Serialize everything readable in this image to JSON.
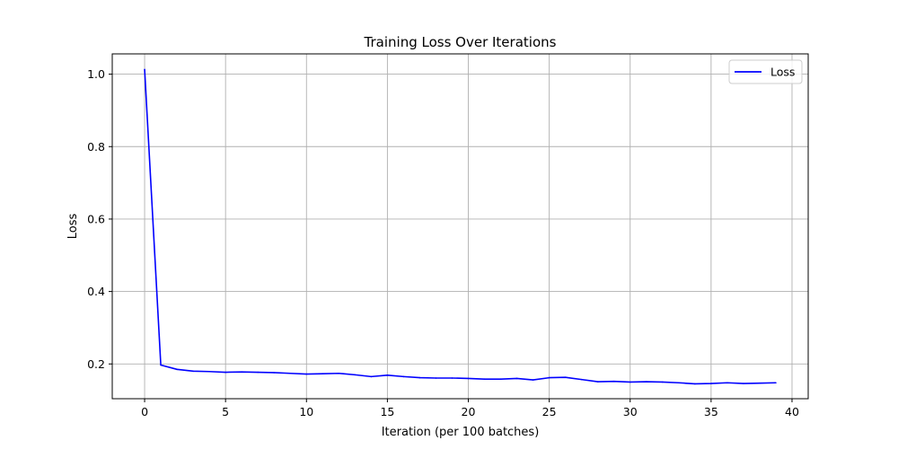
{
  "chart_data": {
    "type": "line",
    "title": "Training Loss Over Iterations",
    "xlabel": "Iteration (per 100 batches)",
    "ylabel": "Loss",
    "xlim": [
      -2,
      41
    ],
    "ylim": [
      0.104,
      1.056
    ],
    "xticks": [
      0,
      5,
      10,
      15,
      20,
      25,
      30,
      35,
      40
    ],
    "yticks": [
      0.2,
      0.4,
      0.6,
      0.8,
      1.0
    ],
    "xtick_labels": [
      "0",
      "5",
      "10",
      "15",
      "20",
      "25",
      "30",
      "35",
      "40"
    ],
    "ytick_labels": [
      "0.2",
      "0.4",
      "0.6",
      "0.8",
      "1.0"
    ],
    "grid": true,
    "legend_position": "top-right",
    "series": [
      {
        "name": "Loss",
        "color": "#0000ff",
        "x": [
          0,
          1,
          2,
          3,
          4,
          5,
          6,
          7,
          8,
          9,
          10,
          11,
          12,
          13,
          14,
          15,
          16,
          17,
          18,
          19,
          20,
          21,
          22,
          23,
          24,
          25,
          26,
          27,
          28,
          29,
          30,
          31,
          32,
          33,
          34,
          35,
          36,
          37,
          38,
          39
        ],
        "y": [
          1.013,
          0.197,
          0.185,
          0.18,
          0.179,
          0.177,
          0.178,
          0.177,
          0.176,
          0.174,
          0.172,
          0.173,
          0.174,
          0.17,
          0.165,
          0.169,
          0.165,
          0.162,
          0.161,
          0.161,
          0.16,
          0.158,
          0.158,
          0.16,
          0.156,
          0.162,
          0.163,
          0.157,
          0.151,
          0.152,
          0.15,
          0.151,
          0.15,
          0.148,
          0.145,
          0.146,
          0.148,
          0.146,
          0.147,
          0.148
        ]
      }
    ]
  }
}
